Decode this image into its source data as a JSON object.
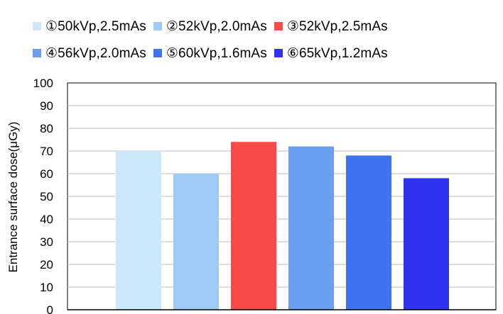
{
  "chart_data": {
    "type": "bar",
    "title": "",
    "xlabel": "",
    "ylabel": "Entrance surface dose(μGy)",
    "ylim": [
      0,
      100
    ],
    "yticks": [
      0,
      10,
      20,
      30,
      40,
      50,
      60,
      70,
      80,
      90,
      100
    ],
    "grid": true,
    "legend_position": "top",
    "categories": [
      "①50kVp,2.5mAs",
      "②52kVp,2.0mAs",
      "③52kVp,2.5mAs",
      "④56kVp,2.0mAs",
      "⑤60kVp,1.6mAs",
      "⑥65kVp,1.2mAs"
    ],
    "values": [
      70,
      60,
      74,
      72,
      68,
      58
    ],
    "colors": [
      "#cde8fa",
      "#9ecbf6",
      "#f94a4a",
      "#6a9ef0",
      "#3f73ef",
      "#2e33f0"
    ]
  }
}
